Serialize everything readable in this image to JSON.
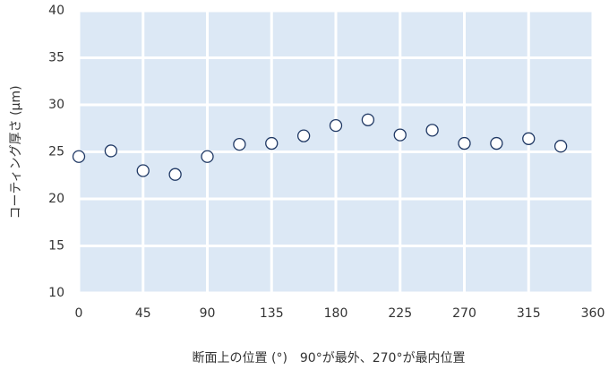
{
  "chart_data": {
    "type": "scatter",
    "x_label": "断面上の位置 (°)　90°が最外、270°が最内位置",
    "y_label": "コーティング厚さ (μm)",
    "x": [
      0,
      22.5,
      45,
      67.5,
      90,
      112.5,
      135,
      157.5,
      180,
      202.5,
      225,
      247.5,
      270,
      292.5,
      315,
      337.5
    ],
    "values": [
      24.5,
      25.1,
      23.0,
      22.6,
      24.5,
      25.8,
      25.9,
      26.7,
      27.8,
      28.4,
      26.8,
      27.3,
      25.9,
      25.9,
      26.4,
      25.6
    ],
    "color": "#ffffff",
    "xlim": [
      0,
      360
    ],
    "xticks": [
      0,
      45,
      90,
      135,
      180,
      225,
      270,
      315,
      360
    ],
    "ylim": [
      10,
      40
    ],
    "yticks": [
      10,
      15,
      20,
      25,
      30,
      35,
      40
    ],
    "grid": true
  }
}
